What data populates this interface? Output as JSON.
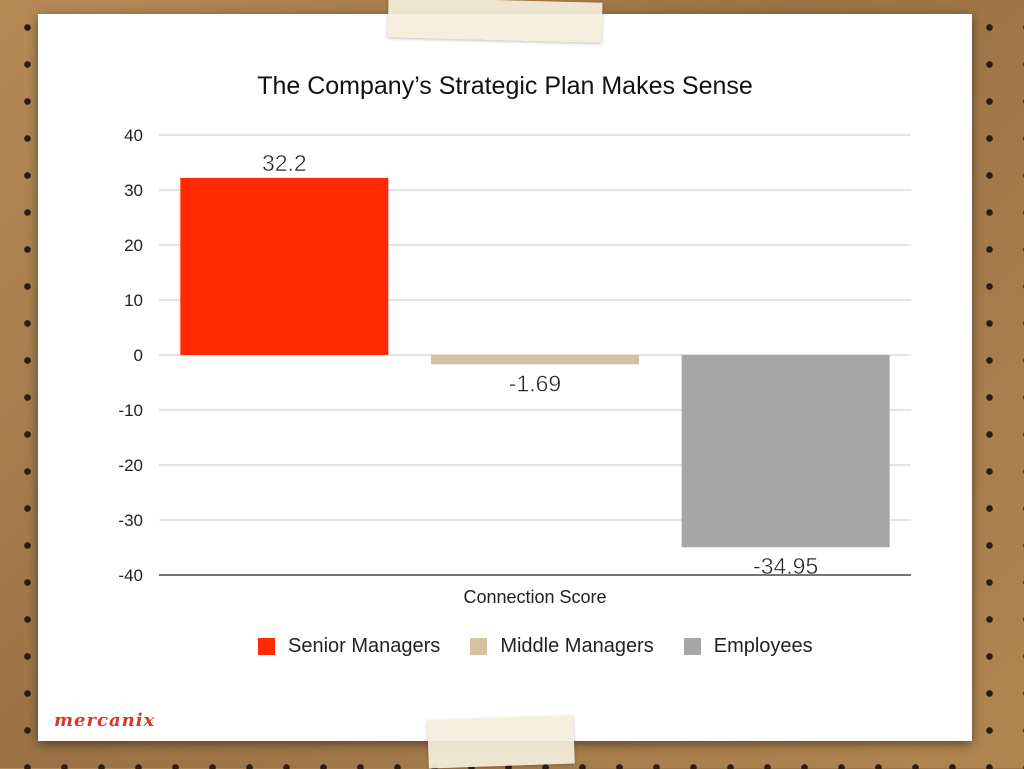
{
  "chart_data": {
    "type": "bar",
    "title": "The Company’s Strategic Plan Makes Sense",
    "xlabel": "Connection Score",
    "ylabel": "",
    "ylim": [
      -40,
      40
    ],
    "yticks": [
      40,
      30,
      20,
      10,
      0,
      -10,
      -20,
      -30,
      -40
    ],
    "grid": true,
    "legend_position": "bottom",
    "categories": [
      "Connection Score"
    ],
    "series": [
      {
        "name": "Senior Managers",
        "values": [
          32.2
        ],
        "label": "32.2",
        "color": "#ff2a00"
      },
      {
        "name": "Middle Managers",
        "values": [
          -1.69
        ],
        "label": "-1.69",
        "color": "#d6c2a3"
      },
      {
        "name": "Employees",
        "values": [
          -34.95
        ],
        "label": "-34.95",
        "color": "#a6a6a6"
      }
    ]
  },
  "logo_text": "mercanix",
  "colors": {
    "gridline": "#c8c8c8",
    "axis": "#222222"
  }
}
